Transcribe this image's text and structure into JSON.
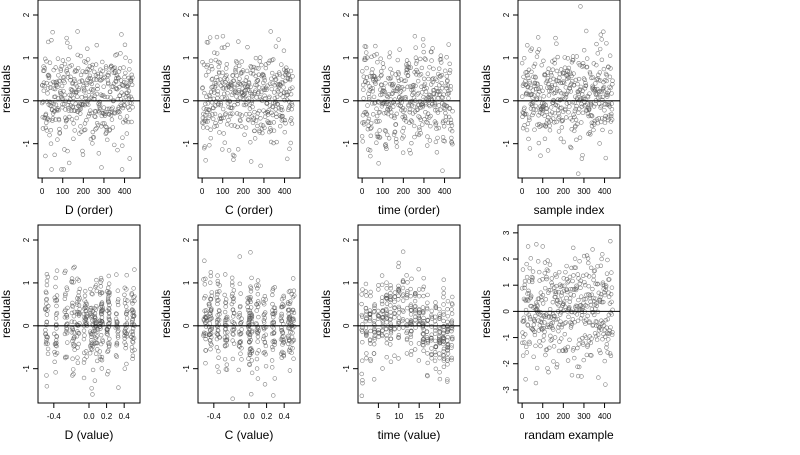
{
  "chart_data": [
    {
      "type": "scatter",
      "title": "",
      "xlabel": "D (order)",
      "ylabel": "residuals",
      "xlim": [
        -20,
        475
      ],
      "ylim": [
        -1.8,
        2.35
      ],
      "xticks": [
        0,
        100,
        200,
        300,
        400
      ],
      "xtick_labels": [
        "0",
        "100",
        "200",
        "300",
        "400"
      ],
      "yticks": [
        -1,
        0,
        1,
        2
      ],
      "ytick_labels": [
        "-1",
        "0",
        "1",
        "2"
      ],
      "hline": 0,
      "pattern": "index",
      "n": 440,
      "seed": 11,
      "points_note_value_range": [
        -1.6,
        2.2
      ]
    },
    {
      "type": "scatter",
      "title": "",
      "xlabel": "C (order)",
      "ylabel": "residuals",
      "xlim": [
        -20,
        475
      ],
      "ylim": [
        -1.8,
        2.35
      ],
      "xticks": [
        0,
        100,
        200,
        300,
        400
      ],
      "xtick_labels": [
        "0",
        "100",
        "200",
        "300",
        "400"
      ],
      "yticks": [
        -1,
        0,
        1,
        2
      ],
      "ytick_labels": [
        "-1",
        "0",
        "1",
        "2"
      ],
      "hline": 0,
      "pattern": "index",
      "n": 440,
      "seed": 23,
      "points_note_value_range": [
        -1.7,
        2.2
      ]
    },
    {
      "type": "scatter",
      "title": "",
      "xlabel": "time (order)",
      "ylabel": "residuals",
      "xlim": [
        -20,
        475
      ],
      "ylim": [
        -1.8,
        2.35
      ],
      "xticks": [
        0,
        100,
        200,
        300,
        400
      ],
      "xtick_labels": [
        "0",
        "100",
        "200",
        "300",
        "400"
      ],
      "yticks": [
        -1,
        0,
        1,
        2
      ],
      "ytick_labels": [
        "-1",
        "0",
        "1",
        "2"
      ],
      "hline": 0,
      "pattern": "time_order",
      "n": 440,
      "seed": 37,
      "points_note_value_range": [
        -1.7,
        2.2
      ]
    },
    {
      "type": "scatter",
      "title": "",
      "xlabel": "sample index",
      "ylabel": "residuals",
      "xlim": [
        -20,
        475
      ],
      "ylim": [
        -1.8,
        2.35
      ],
      "xticks": [
        0,
        100,
        200,
        300,
        400
      ],
      "xtick_labels": [
        "0",
        "100",
        "200",
        "300",
        "400"
      ],
      "yticks": [
        -1,
        0,
        1,
        2
      ],
      "ytick_labels": [
        "-1",
        "0",
        "1",
        "2"
      ],
      "hline": 0,
      "pattern": "index",
      "n": 440,
      "seed": 53,
      "points_note_value_range": [
        -1.7,
        2.2
      ]
    },
    {
      "type": "scatter",
      "title": "",
      "xlabel": "D (value)",
      "ylabel": "residuals",
      "xlim": [
        -0.58,
        0.58
      ],
      "ylim": [
        -1.8,
        2.35
      ],
      "xticks": [
        -0.4,
        0.0,
        0.2,
        0.4
      ],
      "xtick_labels": [
        "-0.4",
        "0.0",
        "0.2",
        "0.4"
      ],
      "yticks": [
        -1,
        0,
        1,
        2
      ],
      "ytick_labels": [
        "-1",
        "0",
        "1",
        "2"
      ],
      "hline": 0,
      "pattern": "value_clusters",
      "cluster_centers": [
        -0.48,
        -0.38,
        -0.26,
        -0.18,
        -0.12,
        -0.04,
        0.03,
        0.08,
        0.14,
        0.22,
        0.32,
        0.42,
        0.5
      ],
      "n": 440,
      "seed": 71,
      "points_note_value_range": [
        -1.6,
        2.2
      ]
    },
    {
      "type": "scatter",
      "title": "",
      "xlabel": "C (value)",
      "ylabel": "residuals",
      "xlim": [
        -0.58,
        0.58
      ],
      "ylim": [
        -1.8,
        2.35
      ],
      "xticks": [
        -0.4,
        0.0,
        0.2,
        0.4
      ],
      "xtick_labels": [
        "-0.4",
        "0.0",
        "0.2",
        "0.4"
      ],
      "yticks": [
        -1,
        0,
        1,
        2
      ],
      "ytick_labels": [
        "-1",
        "0",
        "1",
        "2"
      ],
      "hline": 0,
      "pattern": "value_clusters",
      "cluster_centers": [
        -0.5,
        -0.44,
        -0.35,
        -0.26,
        -0.18,
        -0.1,
        0.0,
        0.02,
        0.1,
        0.18,
        0.28,
        0.38,
        0.46,
        0.5
      ],
      "n": 440,
      "seed": 89,
      "points_note_value_range": [
        -1.7,
        2.2
      ]
    },
    {
      "type": "scatter",
      "title": "",
      "xlabel": "time (value)",
      "ylabel": "residuals",
      "xlim": [
        0,
        25
      ],
      "ylim": [
        -1.8,
        2.35
      ],
      "xticks": [
        5,
        10,
        15,
        20
      ],
      "xtick_labels": [
        "5",
        "10",
        "15",
        "20"
      ],
      "yticks": [
        -1,
        0,
        1,
        2
      ],
      "ytick_labels": [
        "-1",
        "0",
        "1",
        "2"
      ],
      "hline": 0,
      "pattern": "time_value",
      "n": 440,
      "seed": 97,
      "points_note_value_range": [
        -1.7,
        2.2
      ]
    },
    {
      "type": "scatter",
      "title": "",
      "xlabel": "randam example",
      "ylabel": "residuals",
      "xlim": [
        -20,
        475
      ],
      "ylim": [
        -3.5,
        3.3
      ],
      "xticks": [
        0,
        100,
        200,
        300,
        400
      ],
      "xtick_labels": [
        "0",
        "100",
        "200",
        "300",
        "400"
      ],
      "yticks": [
        -3,
        -2,
        -1,
        0,
        1,
        2,
        3
      ],
      "ytick_labels": [
        "-3",
        "-2",
        "-1",
        "0",
        "1",
        "2",
        "3"
      ],
      "hline": 0,
      "pattern": "random",
      "n": 440,
      "seed": 131,
      "points_note_value_range": [
        -3.2,
        3.0
      ]
    }
  ]
}
